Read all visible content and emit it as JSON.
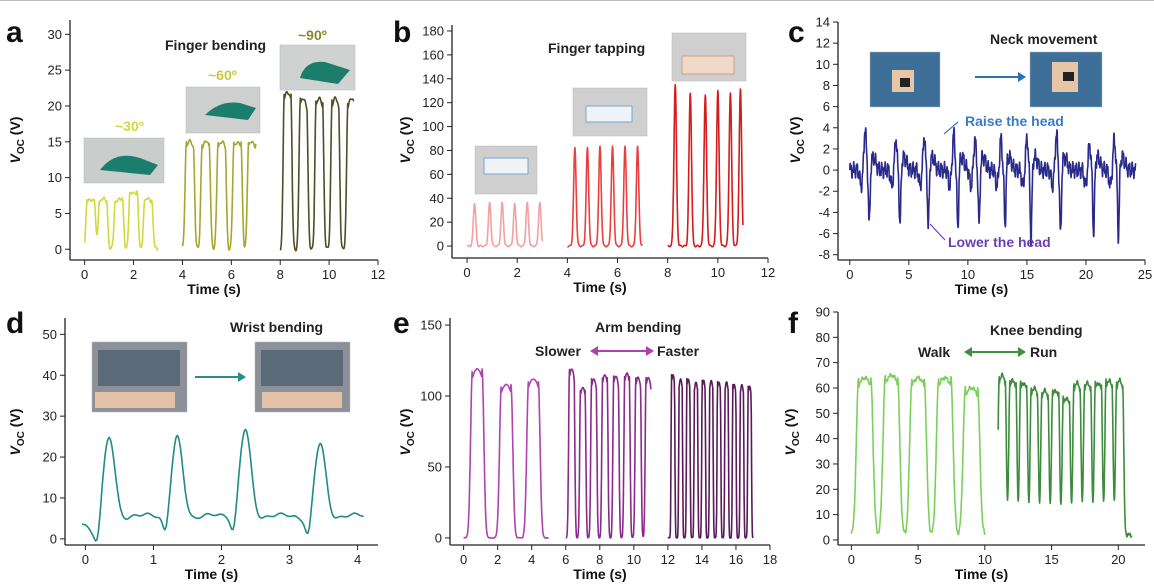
{
  "chart_data": [
    {
      "panel": "a",
      "type": "line",
      "title": "Finger bending",
      "xlabel": "Time (s)",
      "ylabel": "V_OC (V)",
      "xlim": [
        -0.6,
        12
      ],
      "ylim": [
        -1.5,
        32
      ],
      "xticks": [
        0,
        2,
        4,
        6,
        8,
        10,
        12
      ],
      "yticks": [
        0,
        5,
        10,
        15,
        20,
        25,
        30
      ],
      "series": [
        {
          "name": "~30º",
          "color": "#d4d83a",
          "x0": 0.0,
          "x1": 3.0,
          "peaks": [
            0.25,
            0.75,
            1.4,
            2.0,
            2.6
          ],
          "width": 0.14,
          "values": [
            7,
            7,
            7,
            8,
            7
          ],
          "baseline": 0,
          "kind": "bending"
        },
        {
          "name": "~60º",
          "color": "#a6a62c",
          "x0": 4.0,
          "x1": 7.0,
          "peaks": [
            4.3,
            4.95,
            5.6,
            6.25,
            6.85
          ],
          "width": 0.14,
          "values": [
            15,
            15,
            15,
            15,
            15
          ],
          "baseline": 0,
          "kind": "bending"
        },
        {
          "name": "~90º",
          "color": "#4e4d24",
          "x0": 8.0,
          "x1": 11.0,
          "peaks": [
            8.3,
            8.95,
            9.6,
            10.25,
            10.9
          ],
          "width": 0.13,
          "values": [
            22,
            21,
            21,
            21,
            21
          ],
          "baseline": 0,
          "kind": "bending"
        }
      ],
      "annotations": [
        {
          "text": "~30º",
          "color": "#d4d83a"
        },
        {
          "text": "~60º",
          "color": "#c9c83a"
        },
        {
          "text": "~90º",
          "color": "#8a862c"
        }
      ]
    },
    {
      "panel": "b",
      "type": "line",
      "title": "Finger tapping",
      "xlabel": "Time (s)",
      "ylabel": "V_OC (V)",
      "xlim": [
        -0.6,
        12
      ],
      "ylim": [
        -10,
        185
      ],
      "xticks": [
        0,
        2,
        4,
        6,
        8,
        10,
        12
      ],
      "yticks": [
        0,
        20,
        40,
        60,
        80,
        100,
        120,
        140,
        160,
        180
      ],
      "series": [
        {
          "color": "#f2a0a4",
          "x0": 0.0,
          "x1": 3.0,
          "peaks": [
            0.3,
            0.9,
            1.4,
            1.9,
            2.4,
            2.9
          ],
          "width": 0.05,
          "values": [
            36,
            36,
            36,
            35,
            36,
            36
          ],
          "baseline": 0,
          "kind": "tap"
        },
        {
          "color": "#ea3f3f",
          "x0": 4.0,
          "x1": 7.0,
          "peaks": [
            4.3,
            4.8,
            5.3,
            5.8,
            6.3,
            6.8
          ],
          "width": 0.05,
          "values": [
            82,
            82,
            83,
            83,
            83,
            83
          ],
          "baseline": 0,
          "kind": "tap"
        },
        {
          "color": "#d41c1c",
          "x0": 8.0,
          "x1": 11.0,
          "peaks": [
            8.3,
            8.9,
            9.5,
            10.0,
            10.5,
            10.9
          ],
          "width": 0.05,
          "values": [
            135,
            128,
            126,
            130,
            128,
            131
          ],
          "baseline": 0,
          "kind": "tap"
        }
      ]
    },
    {
      "panel": "c",
      "type": "line",
      "title": "Neck movement",
      "xlabel": "Time (s)",
      "ylabel": "V_OC (V)",
      "xlim": [
        -1,
        25
      ],
      "ylim": [
        -8.5,
        14
      ],
      "xticks": [
        0,
        5,
        10,
        15,
        20,
        25
      ],
      "yticks": [
        -8,
        -6,
        -4,
        -2,
        0,
        2,
        4,
        6,
        8,
        10,
        12,
        14
      ],
      "series": [
        {
          "color": "#2a2a8a",
          "x0": 0.0,
          "x1": 24.2,
          "kind": "neck",
          "peaks": [
            1.3,
            3.9,
            6.3,
            8.8,
            10.6,
            12.8,
            15.0,
            17.5,
            20.3,
            22.4
          ],
          "values": [
            4.0,
            3.0,
            3.2,
            3.5,
            3.0,
            3.0,
            3.2,
            3.5,
            2.5,
            3.0
          ],
          "troughs": [
            -5.3,
            -5.4,
            -5.6,
            -5.8,
            -5.4,
            -5.5,
            -6.8,
            -6.4,
            -6.3,
            -6.5
          ]
        }
      ],
      "annotations": [
        {
          "text": "Raise the head",
          "color": "#3b7bc6"
        },
        {
          "text": "Lower the head",
          "color": "#6b3fb0"
        }
      ]
    },
    {
      "panel": "d",
      "type": "line",
      "title": "Wrist bending",
      "xlabel": "Time (s)",
      "ylabel": "V_OC (V)",
      "xlim": [
        -0.3,
        4.3
      ],
      "ylim": [
        -1.5,
        54
      ],
      "xticks": [
        0,
        1,
        2,
        3,
        4
      ],
      "yticks": [
        0,
        10,
        20,
        30,
        40,
        50
      ],
      "series": [
        {
          "color": "#1f8b88",
          "x0": -0.05,
          "x1": 4.1,
          "kind": "wrist",
          "peaks": [
            0.35,
            1.35,
            2.35,
            3.45
          ],
          "values": [
            25,
            25,
            27,
            23.5
          ]
        }
      ]
    },
    {
      "panel": "e",
      "type": "line",
      "title": "Arm bending",
      "xlabel": "Time (s)",
      "ylabel": "V_OC (V)",
      "xlim": [
        -0.8,
        18
      ],
      "ylim": [
        -5,
        155
      ],
      "xticks": [
        0,
        2,
        4,
        6,
        8,
        10,
        12,
        14,
        16,
        18
      ],
      "yticks": [
        0,
        50,
        100,
        150
      ],
      "series": [
        {
          "color": "#b043b0",
          "x0": 0.0,
          "x1": 5.0,
          "peaks": [
            0.8,
            2.5,
            4.1
          ],
          "width": 0.28,
          "values": [
            119,
            108,
            112
          ],
          "baseline": 0,
          "kind": "arm"
        },
        {
          "color": "#8a2a8a",
          "x0": 6.0,
          "x1": 11.0,
          "peaks": [
            6.35,
            7.0,
            7.65,
            8.3,
            8.95,
            9.6,
            10.25,
            10.85
          ],
          "width": 0.13,
          "values": [
            119,
            106,
            112,
            115,
            114,
            116,
            113,
            113
          ],
          "baseline": 0,
          "kind": "arm"
        },
        {
          "color": "#5a1a5a",
          "x0": 12.0,
          "x1": 17.0,
          "peaks": [
            12.3,
            12.75,
            13.2,
            13.65,
            14.1,
            14.55,
            15.0,
            15.45,
            15.9,
            16.35,
            16.8
          ],
          "width": 0.08,
          "values": [
            115,
            112,
            112,
            110,
            111,
            111,
            110,
            110,
            108,
            108,
            107
          ],
          "baseline": 0,
          "kind": "arm"
        }
      ],
      "annotations": [
        {
          "text": "Slower",
          "color": "#222"
        },
        {
          "text": "Faster",
          "color": "#222"
        }
      ]
    },
    {
      "panel": "f",
      "type": "line",
      "title": "Knee bending",
      "xlabel": "Time (s)",
      "ylabel": "V_OC (V)",
      "xlim": [
        -1,
        22
      ],
      "ylim": [
        -2,
        90
      ],
      "xticks": [
        0,
        5,
        10,
        15,
        20
      ],
      "yticks": [
        0,
        10,
        20,
        30,
        40,
        50,
        60,
        70,
        80,
        90
      ],
      "series": [
        {
          "color": "#7dcf5c",
          "x0": 0.0,
          "x1": 10.0,
          "peaks": [
            1.0,
            3.0,
            5.0,
            7.0,
            9.0
          ],
          "width": 0.45,
          "values": [
            64,
            65,
            64,
            64,
            60
          ],
          "baseline": 2,
          "kind": "knee"
        },
        {
          "color": "#3c8c3c",
          "x0": 11.0,
          "x1": 21.0,
          "peaks": [
            11.3,
            12.1,
            12.9,
            13.7,
            14.5,
            15.3,
            16.1,
            16.9,
            17.7,
            18.5,
            19.3,
            20.1
          ],
          "width": 0.22,
          "values": [
            65,
            63,
            62,
            60,
            59,
            59,
            56,
            62,
            62,
            62,
            63,
            63
          ],
          "baseline": 2,
          "kind": "knee"
        }
      ],
      "annotations": [
        {
          "text": "Walk",
          "color": "#222"
        },
        {
          "text": "Run",
          "color": "#222"
        }
      ]
    }
  ],
  "labels": {
    "letters": [
      "a",
      "b",
      "c",
      "d",
      "e",
      "f"
    ]
  }
}
